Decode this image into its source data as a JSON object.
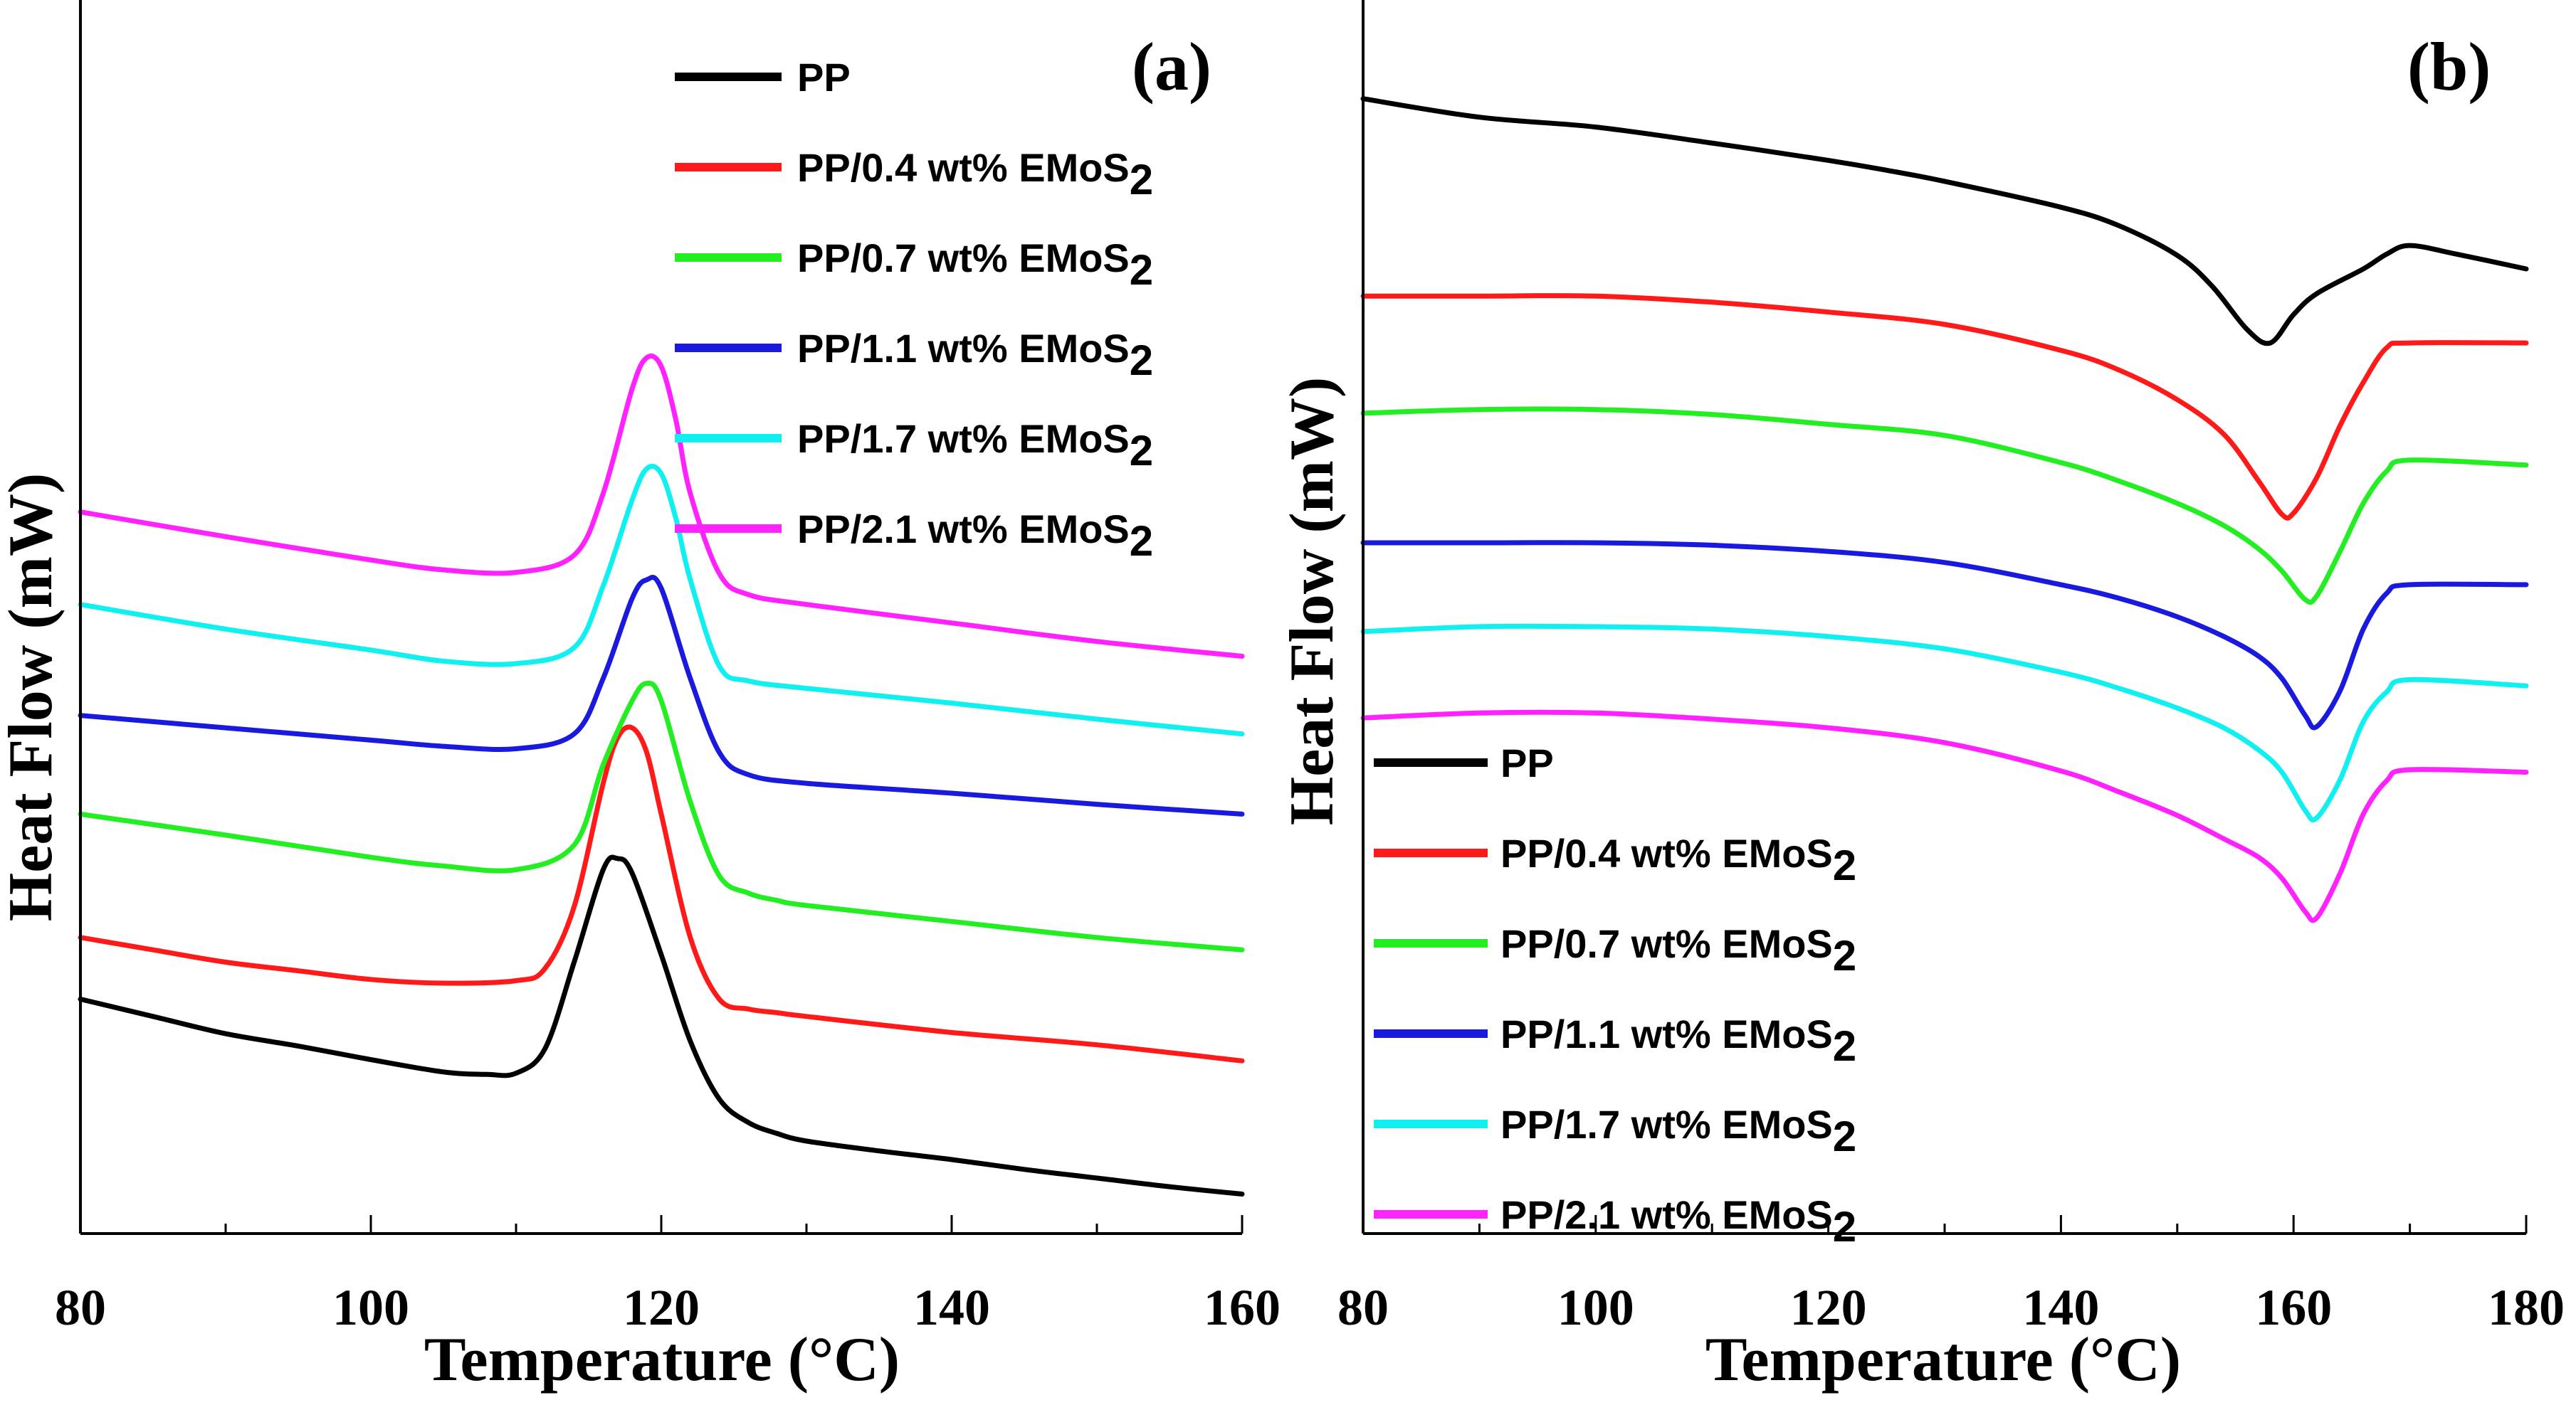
{
  "colors": {
    "PP": "#000000",
    "PP/0.4": "#ff1a1a",
    "PP/0.7": "#22ee22",
    "PP/1.1": "#1a1adf",
    "PP/1.7": "#11f0f0",
    "PP/2.1": "#ff22ff"
  },
  "chart_data": [
    {
      "type": "line",
      "panel": "(a)",
      "title": "",
      "xlabel": "Temperature (°C)",
      "ylabel": "Heat Flow (mW)",
      "xlim": [
        80,
        160
      ],
      "ylim": [
        0,
        100
      ],
      "xticks": [
        80,
        100,
        120,
        140,
        160
      ],
      "yticks": [],
      "grid": false,
      "legend_position": "top-right",
      "legend": [
        {
          "key": "PP",
          "label": "PP",
          "sub": ""
        },
        {
          "key": "PP/0.4",
          "label": "PP/0.4 wt% EMoS",
          "sub": "2"
        },
        {
          "key": "PP/0.7",
          "label": "PP/0.7 wt% EMoS",
          "sub": "2"
        },
        {
          "key": "PP/1.1",
          "label": "PP/1.1 wt% EMoS",
          "sub": "2"
        },
        {
          "key": "PP/1.7",
          "label": "PP/1.7 wt% EMoS",
          "sub": "2"
        },
        {
          "key": "PP/2.1",
          "label": "PP/2.1 wt% EMoS",
          "sub": "2"
        }
      ],
      "series": [
        {
          "name": "PP",
          "x": [
            80,
            85,
            90,
            95,
            100,
            105,
            108,
            110,
            112,
            114,
            116,
            117,
            118,
            120,
            122,
            124,
            126,
            128,
            130,
            135,
            140,
            145,
            150,
            155,
            160
          ],
          "y": [
            19,
            17.6,
            16.2,
            15.2,
            14.1,
            13.1,
            12.9,
            13.0,
            15.0,
            22.0,
            29.5,
            30.4,
            29.2,
            22.6,
            15.6,
            10.9,
            9.0,
            8.1,
            7.5,
            6.7,
            6.0,
            5.2,
            4.5,
            3.8,
            3.2
          ]
        },
        {
          "name": "PP/0.4 wt% EMoS2",
          "x": [
            80,
            85,
            90,
            95,
            100,
            105,
            110,
            112,
            114,
            116,
            117,
            118,
            119,
            120,
            122,
            124,
            126,
            128,
            130,
            140,
            150,
            160
          ],
          "y": [
            24,
            23,
            22,
            21.3,
            20.6,
            20.3,
            20.5,
            21.5,
            26.5,
            36.5,
            40.2,
            41.0,
            39.0,
            34.0,
            24.0,
            19.0,
            18.2,
            17.9,
            17.6,
            16.3,
            15.3,
            14.0
          ]
        },
        {
          "name": "PP/0.7 wt% EMoS2",
          "x": [
            80,
            90,
            100,
            105,
            110,
            114,
            116,
            118,
            119,
            120,
            122,
            124,
            126,
            128,
            130,
            140,
            150,
            160
          ],
          "y": [
            34,
            32.3,
            30.5,
            29.8,
            29.5,
            31.5,
            38,
            43.2,
            44.6,
            43.2,
            35,
            29,
            27.6,
            27,
            26.6,
            25.3,
            24,
            23
          ]
        },
        {
          "name": "PP/1.1 wt% EMoS2",
          "x": [
            80,
            90,
            100,
            105,
            110,
            114,
            116,
            118,
            119,
            120,
            122,
            124,
            126,
            130,
            140,
            150,
            160
          ],
          "y": [
            42,
            41,
            40,
            39.5,
            39.3,
            40.5,
            45,
            51.5,
            53.0,
            52.3,
            45,
            39,
            37.2,
            36.5,
            35.7,
            34.8,
            34
          ]
        },
        {
          "name": "PP/1.7 wt% EMoS2",
          "x": [
            80,
            90,
            100,
            105,
            110,
            114,
            116,
            118,
            119,
            120,
            121,
            122,
            124,
            126,
            130,
            140,
            150,
            160
          ],
          "y": [
            51,
            49,
            47.3,
            46.4,
            46.2,
            47.5,
            52.5,
            59.5,
            62,
            61.6,
            58,
            53,
            46,
            44.8,
            44.2,
            43,
            41.7,
            40.5
          ]
        },
        {
          "name": "PP/2.1 wt% EMoS2",
          "x": [
            80,
            90,
            100,
            105,
            110,
            114,
            116,
            118,
            119,
            120,
            121,
            122,
            124,
            126,
            130,
            140,
            150,
            160
          ],
          "y": [
            58.5,
            56.5,
            54.6,
            53.8,
            53.6,
            55.0,
            60,
            68.5,
            71,
            70.3,
            66,
            60,
            53.5,
            51.8,
            51,
            49.5,
            48,
            46.8
          ]
        }
      ]
    },
    {
      "type": "line",
      "panel": "(b)",
      "title": "",
      "xlabel": "Temperature (°C)",
      "ylabel": "Heat Flow (mW)",
      "xlim": [
        80,
        180
      ],
      "ylim": [
        0,
        100
      ],
      "xticks": [
        80,
        100,
        120,
        140,
        160,
        180
      ],
      "yticks": [],
      "grid": false,
      "legend_position": "bottom-left",
      "legend": [
        {
          "key": "PP",
          "label": "PP",
          "sub": ""
        },
        {
          "key": "PP/0.4",
          "label": "PP/0.4 wt% EMoS",
          "sub": "2"
        },
        {
          "key": "PP/0.7",
          "label": "PP/0.7 wt% EMoS",
          "sub": "2"
        },
        {
          "key": "PP/1.1",
          "label": "PP/1.1 wt% EMoS",
          "sub": "2"
        },
        {
          "key": "PP/1.7",
          "label": "PP/1.7 wt% EMoS",
          "sub": "2"
        },
        {
          "key": "PP/2.1",
          "label": "PP/2.1 wt% EMoS",
          "sub": "2"
        }
      ],
      "series": [
        {
          "name": "PP",
          "x": [
            80,
            90,
            100,
            110,
            120,
            125,
            130,
            140,
            145,
            150,
            153,
            156,
            158,
            160,
            162,
            166,
            168,
            170,
            174,
            180
          ],
          "y": [
            92,
            90.5,
            89.7,
            88.4,
            87,
            86.2,
            85.3,
            83.2,
            81.7,
            79.3,
            76.8,
            73.3,
            72.2,
            74.5,
            76.2,
            78.2,
            79.4,
            80.1,
            79.4,
            78.2
          ]
        },
        {
          "name": "PP/0.4 wt% EMoS2",
          "x": [
            80,
            90,
            100,
            110,
            120,
            130,
            140,
            145,
            150,
            154,
            157,
            159,
            160,
            162,
            164,
            166,
            168,
            170,
            180
          ],
          "y": [
            76,
            76,
            76,
            75.5,
            74.7,
            73.7,
            71.6,
            70,
            67.6,
            64.8,
            61,
            58.3,
            58.4,
            61.3,
            65.5,
            69,
            71.8,
            72.2,
            72.2
          ]
        },
        {
          "name": "PP/0.7 wt% EMoS2",
          "x": [
            80,
            90,
            100,
            110,
            120,
            130,
            140,
            145,
            150,
            154,
            157,
            159,
            161,
            162,
            164,
            166,
            168,
            170,
            180
          ],
          "y": [
            66.5,
            66.8,
            66.8,
            66.4,
            65.6,
            64.7,
            62.5,
            61,
            59.2,
            57.4,
            55.5,
            53.7,
            51.4,
            51.7,
            55.3,
            59.2,
            61.8,
            62.7,
            62.3
          ]
        },
        {
          "name": "PP/1.1 wt% EMoS2",
          "x": [
            80,
            90,
            100,
            110,
            120,
            130,
            140,
            145,
            150,
            154,
            157,
            159,
            161,
            162,
            164,
            166,
            168,
            170,
            180
          ],
          "y": [
            56,
            56,
            56,
            55.8,
            55.3,
            54.4,
            52.6,
            51.5,
            50,
            48.4,
            46.8,
            45,
            42,
            41.1,
            44,
            49,
            51.9,
            52.6,
            52.6
          ]
        },
        {
          "name": "PP/1.7 wt% EMoS2",
          "x": [
            80,
            90,
            100,
            110,
            120,
            130,
            140,
            145,
            150,
            154,
            157,
            159,
            161,
            162,
            164,
            166,
            168,
            170,
            180
          ],
          "y": [
            48.8,
            49.2,
            49.2,
            49,
            48.4,
            47.4,
            45.5,
            44.2,
            42.6,
            41,
            39.2,
            37.4,
            34.3,
            33.7,
            36.8,
            41.5,
            43.9,
            44.9,
            44.4
          ]
        },
        {
          "name": "PP/2.1 wt% EMoS2",
          "x": [
            80,
            90,
            100,
            110,
            120,
            130,
            140,
            145,
            150,
            154,
            157,
            159,
            161,
            162,
            164,
            166,
            168,
            170,
            180
          ],
          "y": [
            41.8,
            42.2,
            42.2,
            41.7,
            41,
            39.8,
            37.5,
            35.8,
            33.9,
            32,
            30.5,
            28.8,
            26.1,
            25.6,
            29.2,
            34,
            36.7,
            37.6,
            37.4
          ]
        }
      ]
    }
  ]
}
